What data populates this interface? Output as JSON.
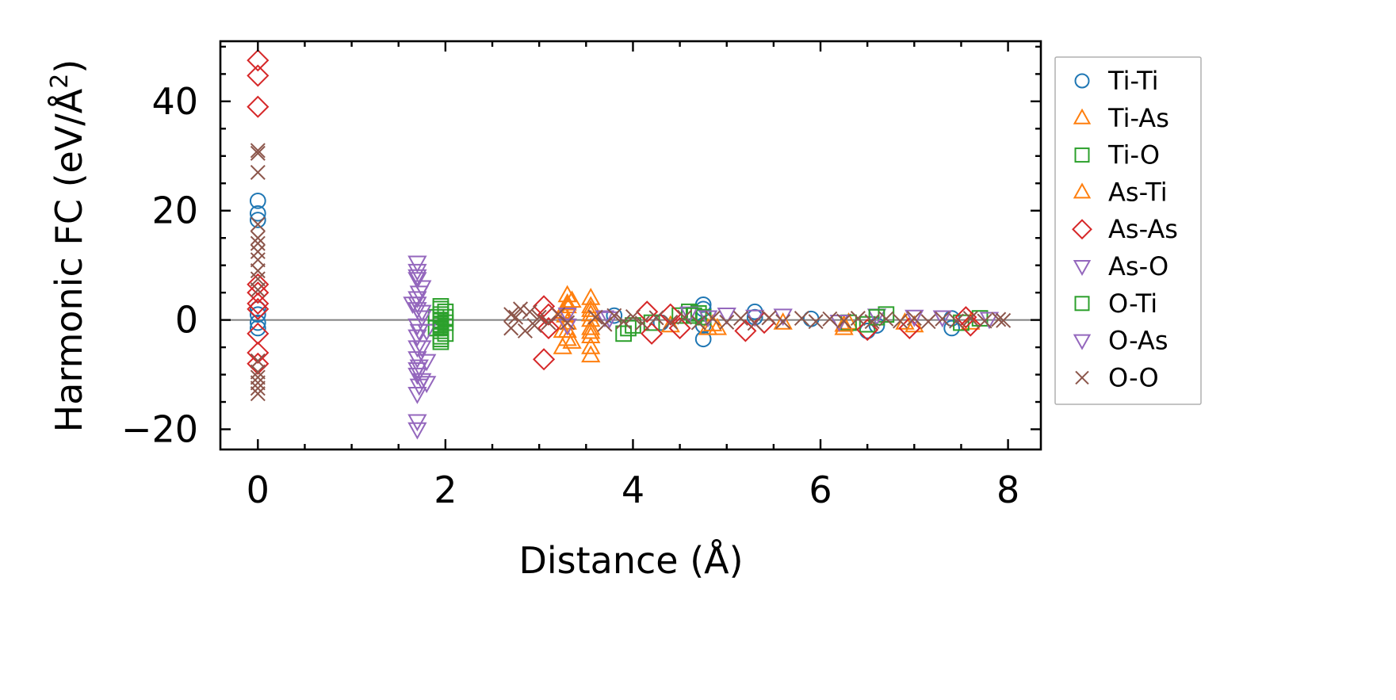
{
  "chart_data": {
    "type": "scatter",
    "xlabel": "Distance (Å)",
    "ylabel_main": "Harmonic FC (eV/Å",
    "ylabel_sup": "2",
    "ylabel_close": ")",
    "xlim": [
      -0.4,
      8.35
    ],
    "ylim": [
      -23.7,
      51
    ],
    "xticks": [
      0,
      2,
      4,
      6,
      8
    ],
    "xtick_labels": [
      "0",
      "2",
      "4",
      "6",
      "8"
    ],
    "x_minor_step": 0.5,
    "yticks": [
      -20,
      0,
      20,
      40
    ],
    "ytick_labels": [
      "−20",
      "0",
      "20",
      "40"
    ],
    "y_minor_step": 5,
    "zero_line": true,
    "grid": false,
    "legend_position": "outside-right",
    "series": [
      {
        "name": "Ti-Ti",
        "marker": "circle",
        "color": "#1f77b4",
        "points": [
          [
            0,
            21.8
          ],
          [
            0,
            19.5
          ],
          [
            0,
            18.3
          ],
          [
            0,
            2.0
          ],
          [
            0,
            1.0
          ],
          [
            0,
            -0.5
          ],
          [
            0,
            -1.5
          ],
          [
            4.75,
            2.8
          ],
          [
            4.75,
            2.0
          ],
          [
            4.75,
            -3.5
          ],
          [
            4.75,
            -1.0
          ],
          [
            5.3,
            1.5
          ],
          [
            5.3,
            0.5
          ],
          [
            6.5,
            -2.0
          ],
          [
            6.6,
            -1.0
          ],
          [
            7.4,
            -1.5
          ],
          [
            7.4,
            0.3
          ],
          [
            3.8,
            0.8
          ],
          [
            4.3,
            -0.5
          ],
          [
            5.9,
            0.2
          ]
        ]
      },
      {
        "name": "Ti-As",
        "marker": "triangle-up",
        "color": "#ff7f0e",
        "points": [
          [
            3.3,
            4.5
          ],
          [
            3.35,
            3.5
          ],
          [
            3.3,
            2.5
          ],
          [
            3.25,
            1.5
          ],
          [
            3.3,
            -0.5
          ],
          [
            3.25,
            -2.0
          ],
          [
            3.3,
            -3.5
          ],
          [
            3.25,
            -5.0
          ],
          [
            3.35,
            -4.0
          ],
          [
            3.55,
            4.0
          ],
          [
            3.55,
            2.5
          ],
          [
            3.55,
            1.0
          ],
          [
            3.55,
            -1.5
          ],
          [
            3.55,
            -3.0
          ],
          [
            3.55,
            -5.0
          ],
          [
            3.55,
            -6.5
          ],
          [
            4.8,
            -1.5
          ],
          [
            4.9,
            -1.5
          ],
          [
            6.25,
            -1.5
          ],
          [
            6.3,
            -0.5
          ],
          [
            7.0,
            -1.0
          ],
          [
            5.6,
            -0.5
          ],
          [
            4.4,
            -1.0
          ],
          [
            7.6,
            -0.5
          ]
        ]
      },
      {
        "name": "Ti-O",
        "marker": "square",
        "color": "#2ca02c",
        "points": [
          [
            1.95,
            2.5
          ],
          [
            1.95,
            1.0
          ],
          [
            1.95,
            0.0
          ],
          [
            1.95,
            -1.0
          ],
          [
            1.95,
            -2.0
          ],
          [
            1.95,
            -3.0
          ],
          [
            1.95,
            -4.0
          ],
          [
            2.0,
            1.5
          ],
          [
            2.0,
            -0.5
          ],
          [
            2.0,
            -2.5
          ],
          [
            1.9,
            -1.5
          ],
          [
            1.9,
            0.5
          ],
          [
            3.9,
            -2.5
          ],
          [
            4.0,
            -1.0
          ],
          [
            4.2,
            -0.5
          ],
          [
            4.6,
            1.5
          ],
          [
            4.7,
            1.2
          ],
          [
            4.75,
            0.5
          ],
          [
            4.5,
            0.8
          ],
          [
            6.3,
            -0.5
          ],
          [
            6.5,
            -0.8
          ],
          [
            6.7,
            1.0
          ],
          [
            7.7,
            0.3
          ],
          [
            7.5,
            -0.5
          ]
        ]
      },
      {
        "name": "As-Ti",
        "marker": "triangle-up",
        "color": "#ff7f0e",
        "points": [
          [
            3.3,
            3.0
          ],
          [
            3.3,
            -2.0
          ],
          [
            3.28,
            0.8
          ],
          [
            3.55,
            1.8
          ],
          [
            3.55,
            -2.2
          ],
          [
            3.55,
            0.0
          ],
          [
            4.85,
            -0.8
          ],
          [
            6.25,
            -0.9
          ],
          [
            6.9,
            -0.5
          ]
        ]
      },
      {
        "name": "As-As",
        "marker": "diamond",
        "color": "#d62728",
        "points": [
          [
            0,
            47.5
          ],
          [
            0,
            44.7
          ],
          [
            0,
            39.0
          ],
          [
            0,
            6.5
          ],
          [
            0,
            5.0
          ],
          [
            0,
            3.0
          ],
          [
            0,
            2.0
          ],
          [
            0,
            -2.5
          ],
          [
            0,
            -6.0
          ],
          [
            0,
            -8.0
          ],
          [
            3.05,
            -7.2
          ],
          [
            3.05,
            2.5
          ],
          [
            3.1,
            1.0
          ],
          [
            3.1,
            -1.5
          ],
          [
            4.15,
            1.5
          ],
          [
            4.2,
            -2.5
          ],
          [
            4.5,
            -1.5
          ],
          [
            4.4,
            1.0
          ],
          [
            5.2,
            -2.0
          ],
          [
            5.4,
            -0.5
          ],
          [
            6.5,
            -1.8
          ],
          [
            6.95,
            -1.5
          ],
          [
            7.6,
            -1.0
          ],
          [
            7.55,
            0.5
          ]
        ]
      },
      {
        "name": "As-O",
        "marker": "triangle-down",
        "color": "#9467bd",
        "points": [
          [
            1.7,
            10.5
          ],
          [
            1.7,
            9.0
          ],
          [
            1.7,
            7.5
          ],
          [
            1.75,
            6.0
          ],
          [
            1.7,
            4.0
          ],
          [
            1.7,
            2.0
          ],
          [
            1.75,
            0.5
          ],
          [
            1.7,
            -1.0
          ],
          [
            1.7,
            -3.0
          ],
          [
            1.75,
            -5.0
          ],
          [
            1.7,
            -7.0
          ],
          [
            1.7,
            -9.0
          ],
          [
            1.75,
            -11.0
          ],
          [
            1.7,
            -13.5
          ],
          [
            1.7,
            -18.5
          ],
          [
            1.7,
            -20.0
          ],
          [
            1.65,
            3.0
          ],
          [
            1.8,
            -2.0
          ],
          [
            1.8,
            -7.5
          ],
          [
            1.8,
            -11.5
          ],
          [
            3.3,
            -1.0
          ],
          [
            3.3,
            1.0
          ],
          [
            3.7,
            0.5
          ],
          [
            4.6,
            1.2
          ],
          [
            5.0,
            1.0
          ],
          [
            5.6,
            0.8
          ],
          [
            6.6,
            0.8
          ],
          [
            7.3,
            0.5
          ]
        ]
      },
      {
        "name": "O-Ti",
        "marker": "square",
        "color": "#2ca02c",
        "points": [
          [
            1.95,
            2.0
          ],
          [
            1.95,
            -1.5
          ],
          [
            2.0,
            0.5
          ],
          [
            1.95,
            -3.5
          ],
          [
            3.95,
            -1.5
          ],
          [
            4.65,
            0.8
          ],
          [
            6.6,
            0.5
          ]
        ]
      },
      {
        "name": "O-As",
        "marker": "triangle-down",
        "color": "#9467bd",
        "points": [
          [
            1.7,
            8.0
          ],
          [
            1.72,
            5.0
          ],
          [
            1.7,
            3.0
          ],
          [
            1.72,
            -2.0
          ],
          [
            1.7,
            -5.0
          ],
          [
            1.72,
            -8.5
          ],
          [
            1.7,
            -10.0
          ],
          [
            1.72,
            -12.0
          ],
          [
            1.75,
            1.5
          ],
          [
            3.75,
            0.3
          ],
          [
            4.8,
            0.5
          ],
          [
            5.3,
            0.6
          ],
          [
            6.2,
            -0.3
          ],
          [
            7.0,
            0.6
          ],
          [
            7.8,
            0.2
          ]
        ]
      },
      {
        "name": "O-O",
        "marker": "x",
        "color": "#8c564b",
        "points": [
          [
            0,
            31.0
          ],
          [
            0,
            30.5
          ],
          [
            0,
            27.0
          ],
          [
            0,
            17.5
          ],
          [
            0,
            15.0
          ],
          [
            0,
            14.0
          ],
          [
            0,
            12.5
          ],
          [
            0,
            11.0
          ],
          [
            0,
            9.0
          ],
          [
            0,
            7.5
          ],
          [
            0,
            5.5
          ],
          [
            0,
            -7.5
          ],
          [
            0,
            -9.5
          ],
          [
            0,
            -10.5
          ],
          [
            0,
            -11.5
          ],
          [
            0,
            -12.5
          ],
          [
            0,
            -13.5
          ],
          [
            2.7,
            1.0
          ],
          [
            2.7,
            -1.5
          ],
          [
            2.75,
            0.5
          ],
          [
            2.8,
            2.0
          ],
          [
            2.85,
            -2.0
          ],
          [
            2.9,
            1.5
          ],
          [
            2.95,
            -1.0
          ],
          [
            3.0,
            0.5
          ],
          [
            3.1,
            -0.5
          ],
          [
            3.2,
            1.0
          ],
          [
            3.3,
            -0.5
          ],
          [
            3.6,
            0.5
          ],
          [
            3.7,
            -0.8
          ],
          [
            3.8,
            0.8
          ],
          [
            3.9,
            -0.3
          ],
          [
            4.0,
            0.6
          ],
          [
            4.1,
            -0.6
          ],
          [
            4.25,
            0.4
          ],
          [
            4.4,
            -0.4
          ],
          [
            4.55,
            0.5
          ],
          [
            4.7,
            -0.5
          ],
          [
            4.85,
            0.3
          ],
          [
            5.0,
            -0.4
          ],
          [
            5.15,
            0.3
          ],
          [
            5.3,
            -0.6
          ],
          [
            5.45,
            0.4
          ],
          [
            5.6,
            -0.3
          ],
          [
            5.8,
            0.3
          ],
          [
            5.95,
            -0.3
          ],
          [
            6.1,
            0.2
          ],
          [
            6.25,
            -0.2
          ],
          [
            6.4,
            0.3
          ],
          [
            6.55,
            -0.3
          ],
          [
            6.7,
            0.2
          ],
          [
            6.85,
            -0.2
          ],
          [
            7.0,
            0.3
          ],
          [
            7.15,
            -0.3
          ],
          [
            7.3,
            0.2
          ],
          [
            7.45,
            -0.2
          ],
          [
            7.6,
            0.3
          ],
          [
            7.75,
            -0.2
          ],
          [
            7.9,
            0.1
          ],
          [
            7.95,
            -0.1
          ]
        ]
      }
    ]
  }
}
